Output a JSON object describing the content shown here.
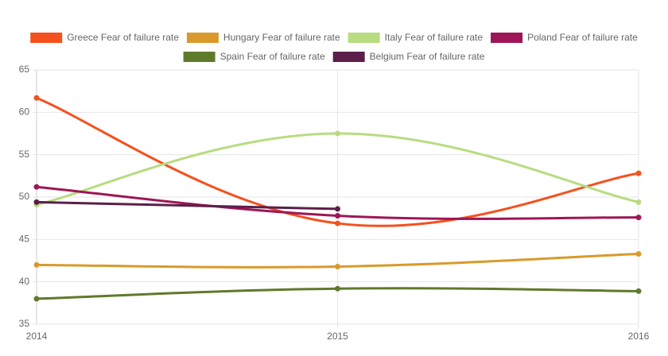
{
  "chart_data": {
    "type": "line",
    "categories": [
      "2014",
      "2015",
      "2016"
    ],
    "series": [
      {
        "name": "Greece Fear of failure rate",
        "color": "#f4511e",
        "values": [
          61.7,
          46.9,
          52.8
        ]
      },
      {
        "name": "Hungary Fear of failure rate",
        "color": "#d99a2b",
        "values": [
          42.0,
          41.8,
          43.3
        ]
      },
      {
        "name": "Italy Fear of failure rate",
        "color": "#b8dc80",
        "values": [
          49.1,
          57.5,
          49.4
        ]
      },
      {
        "name": "Poland Fear of failure rate",
        "color": "#9e1656",
        "values": [
          51.2,
          47.8,
          47.6
        ]
      },
      {
        "name": "Spain Fear of failure rate",
        "color": "#5f7a2b",
        "values": [
          38.0,
          39.2,
          38.9
        ]
      },
      {
        "name": "Belgium Fear of failure rate",
        "color": "#5b1f4a",
        "values": [
          49.4,
          48.6,
          null
        ]
      }
    ],
    "ylim": [
      35,
      65
    ],
    "yticks": [
      35,
      40,
      45,
      50,
      55,
      60,
      65
    ],
    "grid": true,
    "legend": "top"
  }
}
